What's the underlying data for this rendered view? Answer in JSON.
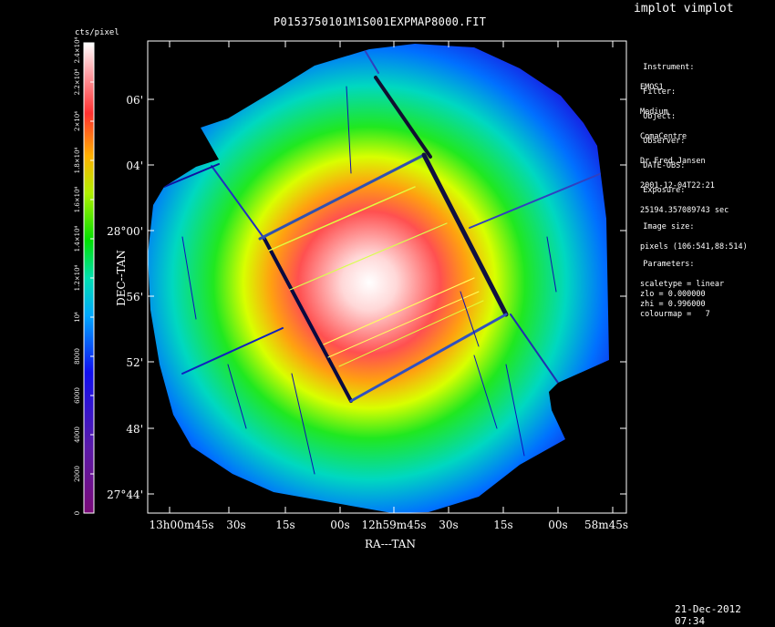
{
  "app": {
    "title": "implot vimplot",
    "timestamp": "21-Dec-2012 07:34"
  },
  "plot": {
    "filename": "P0153750101M1S001EXPMAP8000.FIT",
    "x_axis_label": "RA---TAN",
    "y_axis_label": "DEC--TAN",
    "y_ticks": [
      "06'",
      "04'",
      "28°00'",
      "56'",
      "52'",
      "48'",
      "27°44'"
    ],
    "x_ticks": [
      "13h00m45s",
      "30s",
      "15s",
      "00s",
      "12h59m45s",
      "30s",
      "15s",
      "00s",
      "58m45s"
    ]
  },
  "colorbar": {
    "label": "cts/pixel",
    "ticks": [
      "0",
      "2000",
      "4000",
      "6000",
      "8000",
      "10⁴",
      "1.2×10⁴",
      "1.4×10⁴",
      "1.6×10⁴",
      "1.8×10⁴",
      "2×10⁴",
      "2.2×10⁴",
      "2.4×10⁴"
    ],
    "colormap": "rainbow"
  },
  "info": [
    {
      "label": "Instrument:",
      "value": "EMOS1"
    },
    {
      "label": "Filter:",
      "value": "Medium"
    },
    {
      "label": "Object:",
      "value": "ComaCentre"
    },
    {
      "label": "Observer:",
      "value": "Dr Fred Jansen"
    },
    {
      "label": "DATE-OBS:",
      "value": "2001-12-04T22:21"
    },
    {
      "label": "Exposure:",
      "value": "25194.357089743 sec"
    },
    {
      "label": "Image size:",
      "value": "pixels (106:541,88:514)"
    },
    {
      "label": "Parameters:",
      "value": "scaletype = linear\nzlo = 0.000000\nzhi = 0.996000\ncolourmap =   7"
    }
  ]
}
